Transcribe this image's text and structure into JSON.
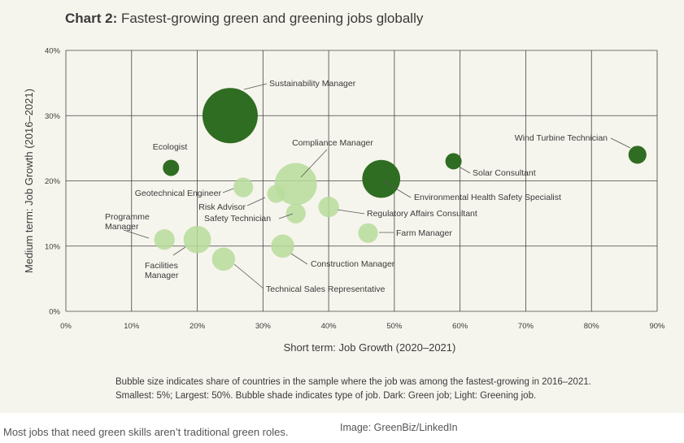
{
  "title_bold": "Chart 2:",
  "title_rest": " Fastest-growing green and greening jobs globally",
  "note_line1": "Bubble size indicates share of countries in the sample where the job was among the fastest-growing in 2016–2021.",
  "note_line2": "Smallest: 5%; Largest: 50%. Bubble shade indicates type of job. Dark: Green job; Light: Greening job.",
  "caption": "Most jobs that need green skills aren’t traditional green roles.",
  "credit": "Image: GreenBiz/LinkedIn",
  "colors": {
    "green_job": "#2f6d22",
    "greening_job": "#b7dc9b",
    "grid": "#444444",
    "text": "#3a3a3a"
  },
  "chart_data": {
    "type": "scatter",
    "title": "Fastest-growing green and greening jobs globally",
    "xlabel": "Short term: Job Growth (2020–2021)",
    "ylabel": "Medium term: Job Growth (2016–2021)",
    "xlim": [
      0,
      90
    ],
    "ylim": [
      0,
      40
    ],
    "x_ticks": [
      "0%",
      "10%",
      "20%",
      "30%",
      "40%",
      "50%",
      "60%",
      "70%",
      "80%",
      "90%"
    ],
    "y_ticks": [
      "0%",
      "10%",
      "20%",
      "30%",
      "40%"
    ],
    "grid": true,
    "size_range_pct": [
      5,
      50
    ],
    "points": [
      {
        "label": "Sustainability Manager",
        "x": 25,
        "y": 30,
        "size": 50,
        "type": "green"
      },
      {
        "label": "Ecologist",
        "x": 16,
        "y": 22,
        "size": 5,
        "type": "green"
      },
      {
        "label": "Compliance Manager",
        "x": 35,
        "y": 19.5,
        "size": 35,
        "type": "greening"
      },
      {
        "label": "Environmental Health Safety Specialist",
        "x": 48,
        "y": 20.3,
        "size": 30,
        "type": "green"
      },
      {
        "label": "Solar Consultant",
        "x": 59,
        "y": 23,
        "size": 5,
        "type": "green"
      },
      {
        "label": "Wind Turbine Technician",
        "x": 87,
        "y": 24,
        "size": 7,
        "type": "green"
      },
      {
        "label": "Geotechnical Engineer",
        "x": 27,
        "y": 19,
        "size": 9,
        "type": "greening"
      },
      {
        "label": "Risk Advisor",
        "x": 32,
        "y": 18,
        "size": 7,
        "type": "greening"
      },
      {
        "label": "Safety Technician",
        "x": 35,
        "y": 15,
        "size": 9,
        "type": "greening"
      },
      {
        "label": "Regulatory Affairs Consultant",
        "x": 40,
        "y": 16,
        "size": 10,
        "type": "greening"
      },
      {
        "label": "Farm Manager",
        "x": 46,
        "y": 12,
        "size": 9,
        "type": "greening"
      },
      {
        "label": "Construction Manager",
        "x": 33,
        "y": 10,
        "size": 13,
        "type": "greening"
      },
      {
        "label": "Programme Manager",
        "x": 15,
        "y": 11,
        "size": 10,
        "type": "greening"
      },
      {
        "label": "Facilities Manager",
        "x": 20,
        "y": 11,
        "size": 18,
        "type": "greening"
      },
      {
        "label": "Technical Sales Representative",
        "x": 24,
        "y": 8,
        "size": 13,
        "type": "greening"
      }
    ]
  }
}
